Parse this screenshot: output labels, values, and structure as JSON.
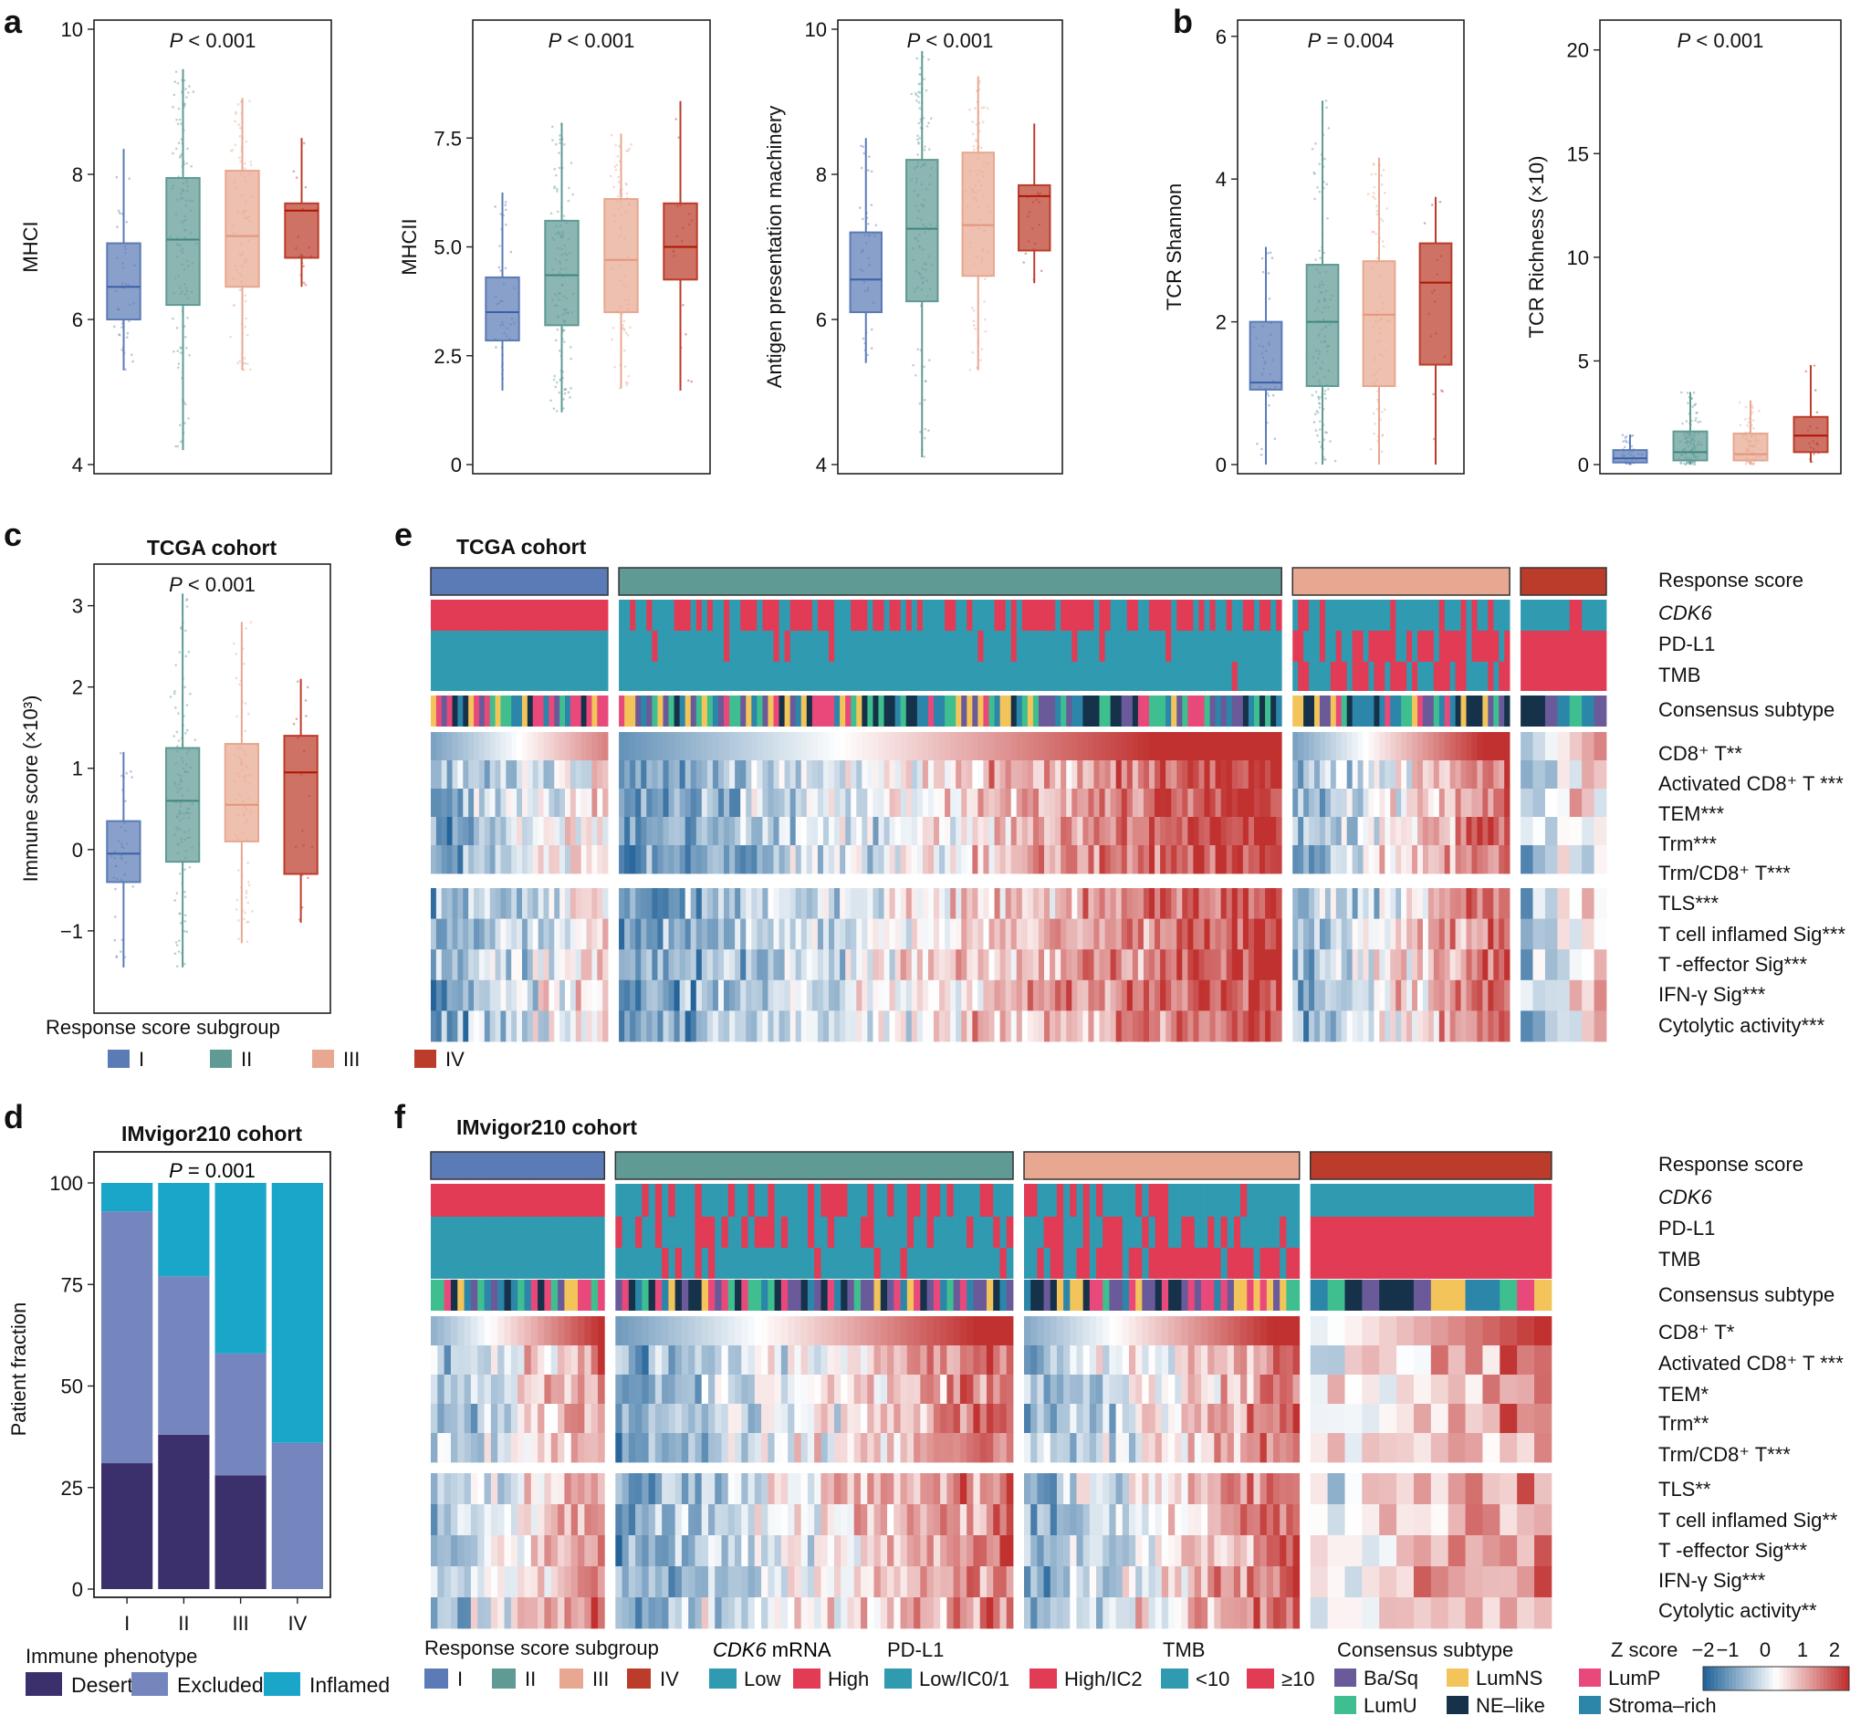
{
  "colors": {
    "groups": [
      "#5b7bb6",
      "#5f9a94",
      "#e8a790",
      "#bb3c2a"
    ],
    "low": "#2f9ab0",
    "high": "#e23b55",
    "phenotype": [
      "#3b306b",
      "#7585bd",
      "#1aa6c9"
    ],
    "subtypes": [
      "#6a5a9a",
      "#f2c45a",
      "#e8497a",
      "#3fbf8f",
      "#16324a",
      "#2c86aa"
    ],
    "zscale": [
      "#24649a",
      "#ffffff",
      "#c0312f"
    ]
  },
  "chart_data": [
    {
      "id": "a1",
      "type": "box",
      "panel_letter": "a",
      "title": "",
      "pvalue_prefix": "P",
      "pvalue_rest": " < 0.001",
      "ylabel": "MHCI",
      "ylim": [
        4,
        10
      ],
      "yticks": [
        "4",
        "6",
        "8",
        "10"
      ],
      "ytick_values": [
        4,
        6,
        8,
        10
      ],
      "categories": [
        "I",
        "II",
        "III",
        "IV"
      ],
      "boxes": [
        {
          "min": 5.3,
          "q1": 6.0,
          "median": 6.45,
          "q3": 7.05,
          "max": 8.35
        },
        {
          "min": 4.2,
          "q1": 6.2,
          "median": 7.1,
          "q3": 7.95,
          "max": 9.45
        },
        {
          "min": 5.3,
          "q1": 6.45,
          "median": 7.15,
          "q3": 8.05,
          "max": 9.05
        },
        {
          "min": 6.45,
          "q1": 6.85,
          "median": 7.5,
          "q3": 7.6,
          "max": 8.5
        }
      ]
    },
    {
      "id": "a2",
      "type": "box",
      "panel_letter": "",
      "title": "",
      "pvalue_prefix": "P",
      "pvalue_rest": " < 0.001",
      "ylabel": "MHCII",
      "ylim": [
        0,
        10
      ],
      "yticks": [
        "0",
        "2.5",
        "5.0",
        "7.5"
      ],
      "ytick_values": [
        0,
        2.5,
        5.0,
        7.5
      ],
      "categories": [
        "I",
        "II",
        "III",
        "IV"
      ],
      "boxes": [
        {
          "min": 1.7,
          "q1": 2.85,
          "median": 3.5,
          "q3": 4.3,
          "max": 6.25
        },
        {
          "min": 1.2,
          "q1": 3.2,
          "median": 4.35,
          "q3": 5.6,
          "max": 7.85
        },
        {
          "min": 1.75,
          "q1": 3.5,
          "median": 4.7,
          "q3": 6.1,
          "max": 7.6
        },
        {
          "min": 1.7,
          "q1": 4.25,
          "median": 5.0,
          "q3": 6.0,
          "max": 8.35
        }
      ]
    },
    {
      "id": "a3",
      "type": "box",
      "panel_letter": "",
      "title": "",
      "pvalue_prefix": "P",
      "pvalue_rest": " < 0.001",
      "ylabel": "Antigen presentation machinery",
      "ylim": [
        4,
        10
      ],
      "yticks": [
        "4",
        "6",
        "8",
        "10"
      ],
      "ytick_values": [
        4,
        6,
        8,
        10
      ],
      "categories": [
        "I",
        "II",
        "III",
        "IV"
      ],
      "boxes": [
        {
          "min": 5.4,
          "q1": 6.1,
          "median": 6.55,
          "q3": 7.2,
          "max": 8.5
        },
        {
          "min": 4.1,
          "q1": 6.25,
          "median": 7.25,
          "q3": 8.2,
          "max": 9.7
        },
        {
          "min": 5.3,
          "q1": 6.6,
          "median": 7.3,
          "q3": 8.3,
          "max": 9.35
        },
        {
          "min": 6.5,
          "q1": 6.95,
          "median": 7.7,
          "q3": 7.85,
          "max": 8.7
        }
      ]
    },
    {
      "id": "b1",
      "type": "box",
      "panel_letter": "b",
      "title": "",
      "pvalue_prefix": "P",
      "pvalue_rest": " = 0.004",
      "ylabel": "TCR Shannon",
      "ylim": [
        0,
        6.1
      ],
      "yticks": [
        "0",
        "2",
        "4",
        "6"
      ],
      "ytick_values": [
        0,
        2,
        4,
        6
      ],
      "categories": [
        "I",
        "II",
        "III",
        "IV"
      ],
      "boxes": [
        {
          "min": 0.0,
          "q1": 1.05,
          "median": 1.15,
          "q3": 2.0,
          "max": 3.05
        },
        {
          "min": 0.0,
          "q1": 1.1,
          "median": 2.0,
          "q3": 2.8,
          "max": 5.1
        },
        {
          "min": 0.0,
          "q1": 1.1,
          "median": 2.1,
          "q3": 2.85,
          "max": 4.3
        },
        {
          "min": 0.0,
          "q1": 1.4,
          "median": 2.55,
          "q3": 3.1,
          "max": 3.75
        }
      ]
    },
    {
      "id": "b2",
      "type": "box",
      "panel_letter": "",
      "title": "",
      "pvalue_prefix": "P",
      "pvalue_rest": " < 0.001",
      "ylabel": "TCR Richness (×10)",
      "ylim": [
        0,
        21
      ],
      "yticks": [
        "0",
        "5",
        "10",
        "15",
        "20"
      ],
      "ytick_values": [
        0,
        5,
        10,
        15,
        20
      ],
      "categories": [
        "I",
        "II",
        "III",
        "IV"
      ],
      "boxes": [
        {
          "min": 0.0,
          "q1": 0.1,
          "median": 0.3,
          "q3": 0.7,
          "max": 1.45
        },
        {
          "min": 0.0,
          "q1": 0.2,
          "median": 0.6,
          "q3": 1.6,
          "max": 3.5
        },
        {
          "min": 0.0,
          "q1": 0.2,
          "median": 0.5,
          "q3": 1.5,
          "max": 3.1
        },
        {
          "min": 0.1,
          "q1": 0.6,
          "median": 1.4,
          "q3": 2.3,
          "max": 4.8
        }
      ]
    },
    {
      "id": "c",
      "type": "box",
      "panel_letter": "c",
      "title": "TCGA cohort",
      "pvalue_prefix": "P",
      "pvalue_rest": " < 0.001",
      "ylabel": "Immune score (×10³)",
      "ylim": [
        -1.9,
        3.4
      ],
      "yticks": [
        "−1",
        "0",
        "1",
        "2",
        "3"
      ],
      "ytick_values": [
        -1,
        0,
        1,
        2,
        3
      ],
      "categories": [
        "I",
        "II",
        "III",
        "IV"
      ],
      "boxes": [
        {
          "min": -1.45,
          "q1": -0.4,
          "median": -0.05,
          "q3": 0.35,
          "max": 1.2
        },
        {
          "min": -1.45,
          "q1": -0.15,
          "median": 0.6,
          "q3": 1.25,
          "max": 3.15
        },
        {
          "min": -1.15,
          "q1": 0.1,
          "median": 0.55,
          "q3": 1.3,
          "max": 2.8
        },
        {
          "min": -0.9,
          "q1": -0.3,
          "median": 0.95,
          "q3": 1.4,
          "max": 2.1
        }
      ]
    },
    {
      "id": "d",
      "type": "stacked_bar",
      "panel_letter": "d",
      "title": "IMvigor210 cohort",
      "pvalue_prefix": "P",
      "pvalue_rest": " = 0.001",
      "ylabel": "Patient fraction",
      "ylim": [
        0,
        100
      ],
      "yticks": [
        "0",
        "25",
        "50",
        "75",
        "100"
      ],
      "ytick_values": [
        0,
        25,
        50,
        75,
        100
      ],
      "categories": [
        "I",
        "II",
        "III",
        "IV"
      ],
      "series": [
        {
          "name": "Desert",
          "values": [
            31,
            38,
            28,
            0
          ]
        },
        {
          "name": "Excluded",
          "values": [
            62,
            39,
            30,
            36
          ]
        },
        {
          "name": "Inflamed",
          "values": [
            7,
            23,
            42,
            64
          ]
        }
      ]
    },
    {
      "id": "e",
      "type": "heatmap",
      "panel_letter": "e",
      "title": "TCGA cohort",
      "groups_n": [
        33,
        120,
        40,
        7
      ],
      "annotation_rows": [
        "Response score",
        "CDK6",
        "PD-L1",
        "TMB",
        "Consensus subtype"
      ],
      "block1_rows": [
        "CD8⁺ T**",
        "Activated CD8⁺ T ***",
        "TEM***",
        "Trm***",
        "Trm/CD8⁺ T***"
      ],
      "block2_rows": [
        "TLS***",
        "T cell inflamed Sig***",
        "T -effector Sig***",
        "IFN-γ Sig***",
        "Cytolytic activity***"
      ]
    },
    {
      "id": "f",
      "type": "heatmap",
      "panel_letter": "f",
      "title": "IMvigor210 cohort",
      "groups_n": [
        26,
        60,
        42,
        14
      ],
      "annotation_rows": [
        "Response score",
        "CDK6",
        "PD-L1",
        "TMB",
        "Consensus subtype"
      ],
      "block1_rows": [
        "CD8⁺ T*",
        "Activated CD8⁺ T ***",
        "TEM*",
        "Trm**",
        "Trm/CD8⁺ T***"
      ],
      "block2_rows": [
        "TLS**",
        "T cell inflamed Sig**",
        "T -effector Sig***",
        "IFN-γ Sig***",
        "Cytolytic activity**"
      ]
    }
  ],
  "legends": {
    "response_title": "Response score subgroup",
    "response_items": [
      "I",
      "II",
      "III",
      "IV"
    ],
    "phenotype_title": "Immune phenotype",
    "phenotype_items": [
      "Desert",
      "Excluded",
      "Inflamed"
    ],
    "cdk6_title_italic": "CDK6",
    "cdk6_title_rest": " mRNA",
    "cdk6_items": [
      "Low",
      "High"
    ],
    "pdl1_title": "PD-L1",
    "pdl1_items": [
      "Low/IC0/1",
      "High/IC2"
    ],
    "tmb_title": "TMB",
    "tmb_items": [
      "<10",
      "≥10"
    ],
    "subtype_title": "Consensus subtype",
    "subtype_items": [
      "Ba/Sq",
      "LumNS",
      "LumP",
      "LumU",
      "NE–like",
      "Stroma–rich"
    ],
    "zscore_title": "Z score",
    "zscore_ticks": [
      "−2",
      "−1",
      "0",
      "1",
      "2"
    ]
  }
}
